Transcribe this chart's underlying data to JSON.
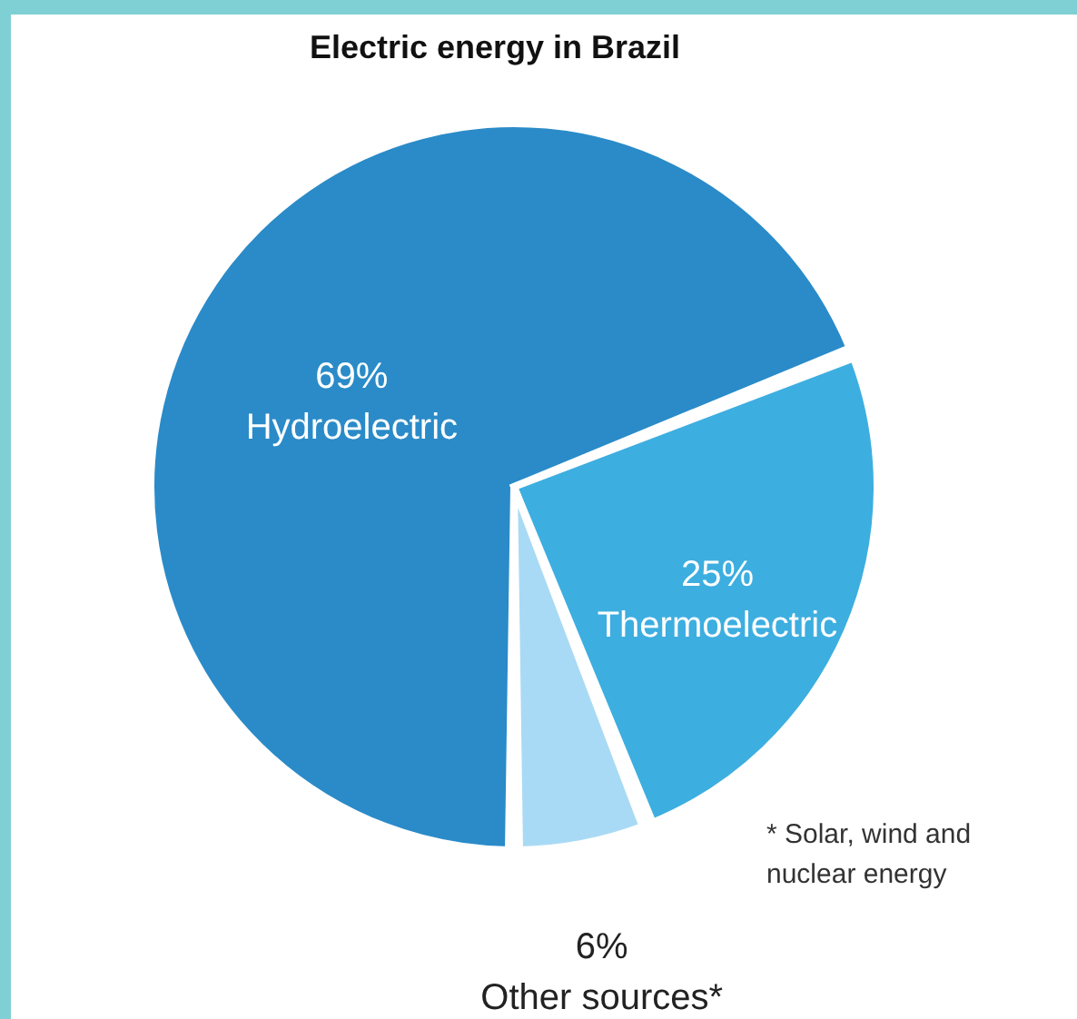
{
  "chart_data": {
    "type": "pie",
    "title": "Electric energy in Brazil",
    "categories": [
      "Hydroelectric",
      "Thermoelectric",
      "Other sources*"
    ],
    "values": [
      69,
      25,
      6
    ],
    "value_labels": [
      "69%",
      "25%",
      "6%"
    ],
    "colors": [
      "#2a8bc8",
      "#3daee0",
      "#a9daf5"
    ],
    "annotations": [
      "* Solar, wind and nuclear energy"
    ]
  }
}
